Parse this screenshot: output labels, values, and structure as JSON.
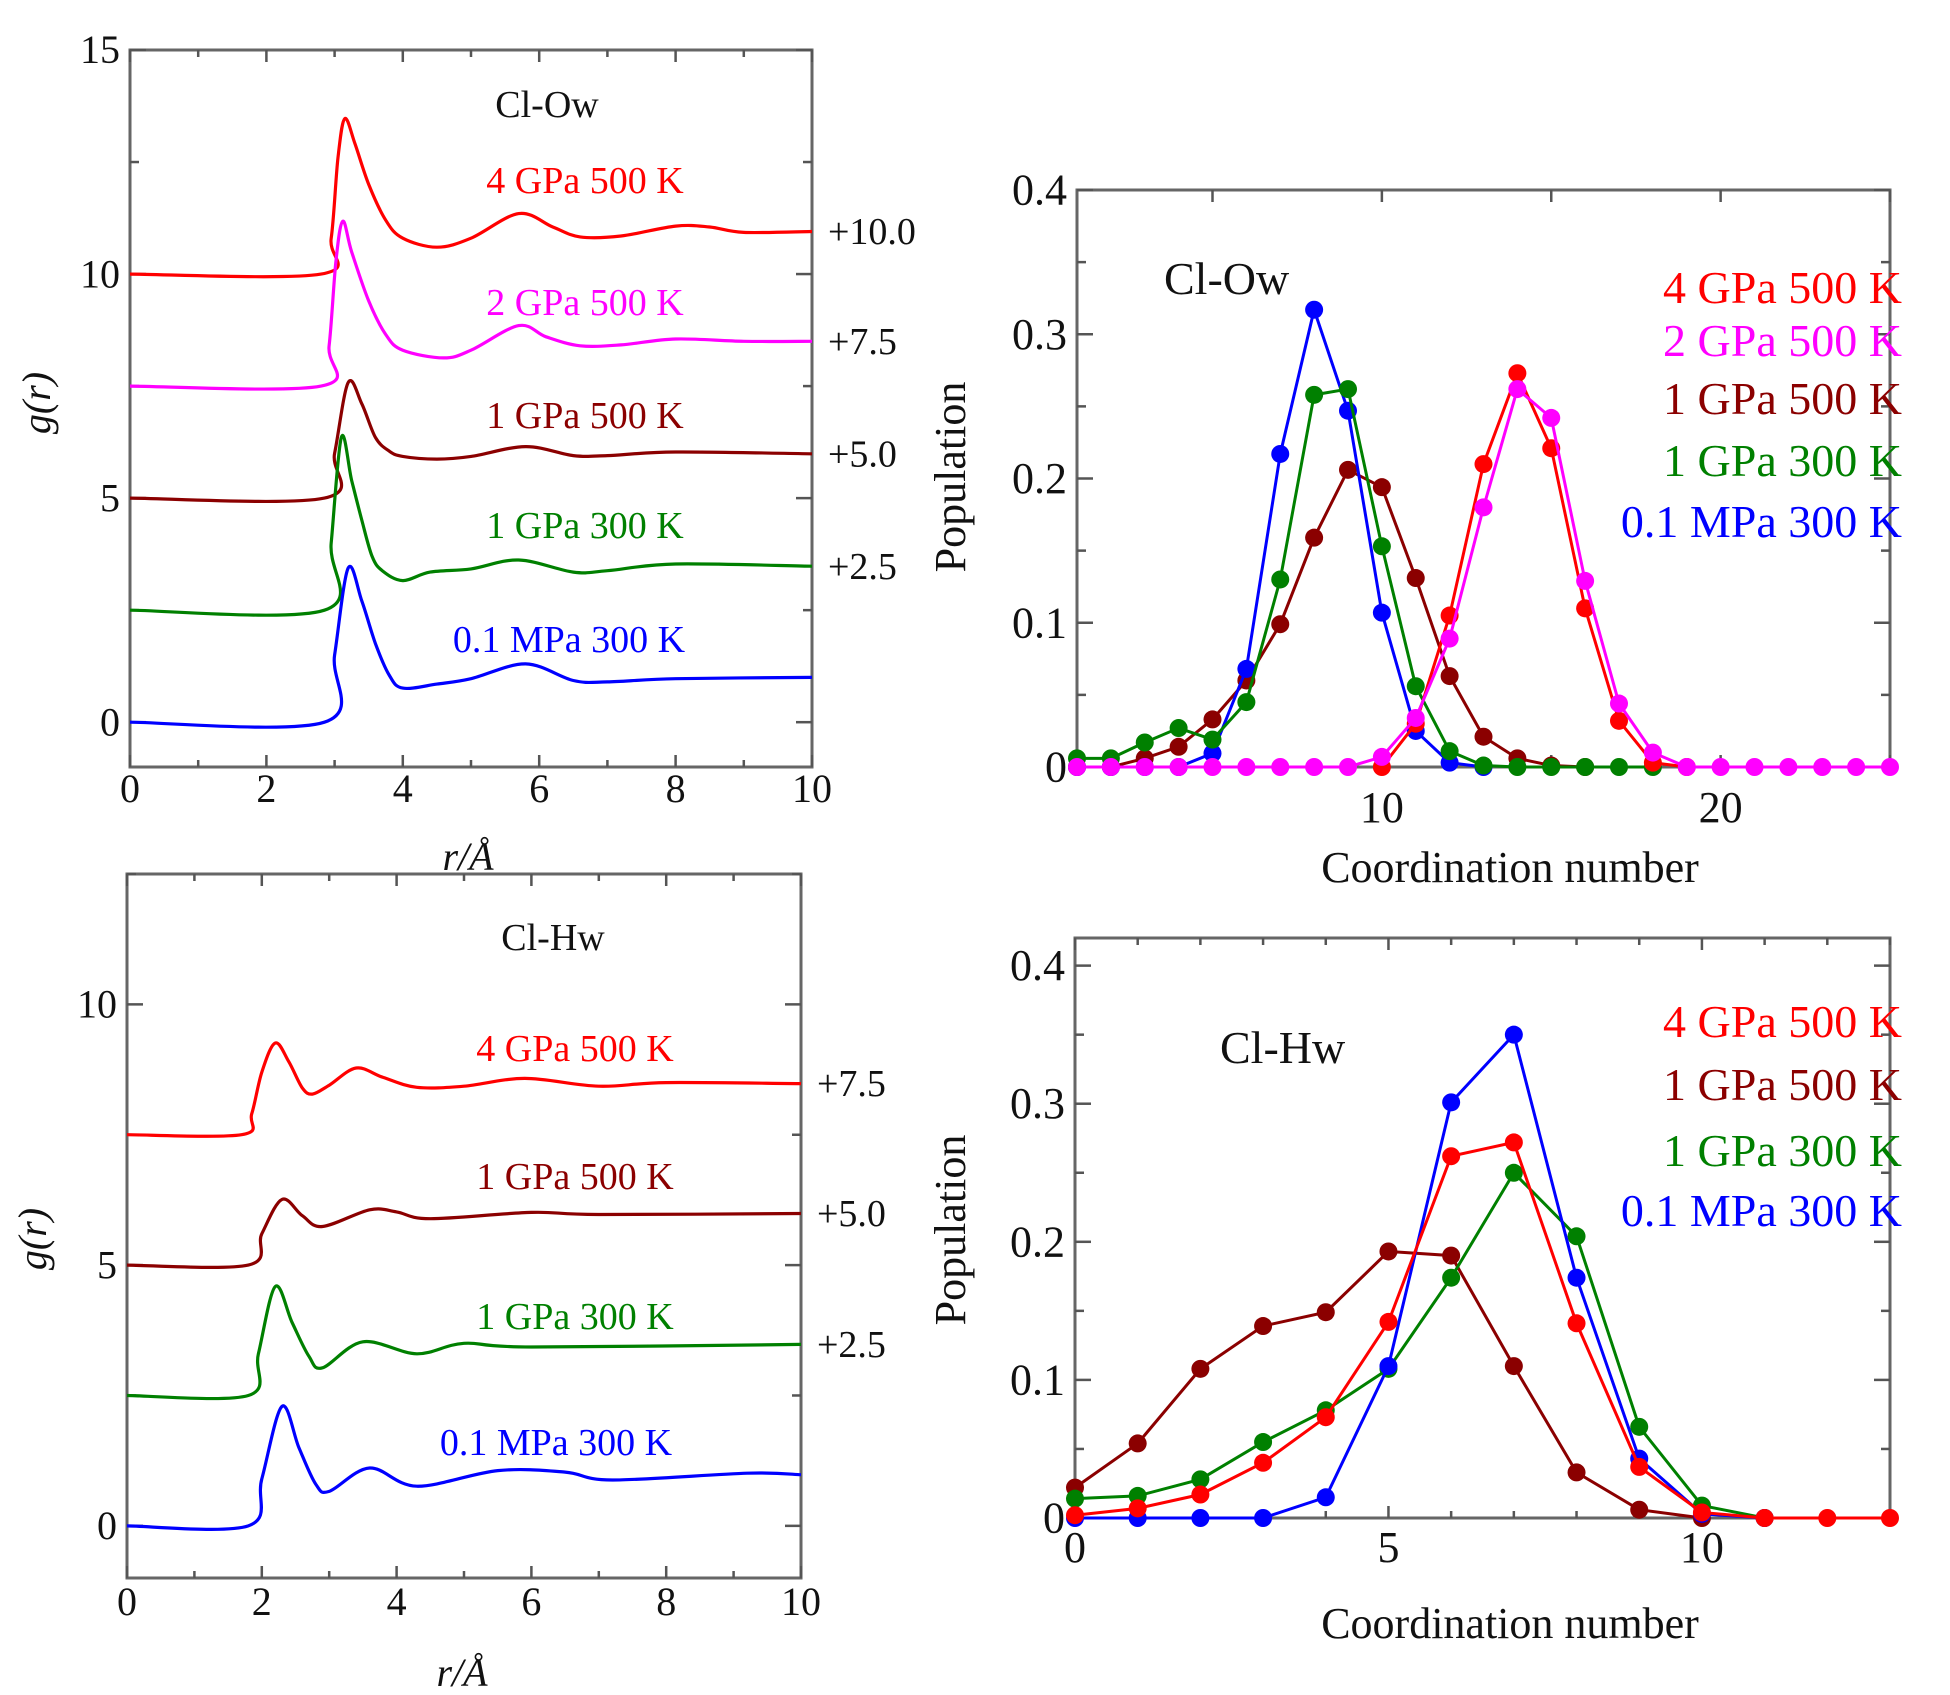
{
  "chart_data": [
    {
      "type": "line",
      "title": "Cl-Ow",
      "xlabel": "r/Å",
      "ylabel": "g(r)",
      "xlim": [
        0,
        10
      ],
      "ylim": [
        -1,
        15
      ],
      "xtick_labels": [
        0,
        2,
        4,
        6,
        8,
        10
      ],
      "ytick_labels": [
        0,
        5,
        10,
        15
      ],
      "grid": false,
      "series": [
        {
          "name": "4 GPa 500 K",
          "color": "#ff0000",
          "offset": 10,
          "offset_label": "+10.0",
          "points": [
            [
              0,
              0
            ],
            [
              2.8,
              0
            ],
            [
              2.95,
              0.8
            ],
            [
              3.05,
              2.6
            ],
            [
              3.15,
              3.47
            ],
            [
              3.3,
              2.9
            ],
            [
              3.5,
              2.0
            ],
            [
              3.75,
              1.2
            ],
            [
              4.0,
              0.8
            ],
            [
              4.5,
              0.6
            ],
            [
              5.0,
              0.8
            ],
            [
              5.7,
              1.35
            ],
            [
              6.2,
              1.05
            ],
            [
              6.6,
              0.83
            ],
            [
              7.2,
              0.85
            ],
            [
              8.0,
              1.07
            ],
            [
              8.5,
              1.05
            ],
            [
              9.0,
              0.93
            ],
            [
              10,
              0.95
            ]
          ]
        },
        {
          "name": "2 GPa 500 K",
          "color": "#ff00ff",
          "offset": 7.5,
          "offset_label": "+7.5",
          "points": [
            [
              0,
              0
            ],
            [
              2.8,
              0
            ],
            [
              2.92,
              0.9
            ],
            [
              3.02,
              2.8
            ],
            [
              3.12,
              3.68
            ],
            [
              3.25,
              3.0
            ],
            [
              3.5,
              1.9
            ],
            [
              3.75,
              1.15
            ],
            [
              4.0,
              0.8
            ],
            [
              4.6,
              0.63
            ],
            [
              5.0,
              0.8
            ],
            [
              5.7,
              1.35
            ],
            [
              6.1,
              1.1
            ],
            [
              6.6,
              0.9
            ],
            [
              7.2,
              0.92
            ],
            [
              8.0,
              1.05
            ],
            [
              9.0,
              1.0
            ],
            [
              10,
              1.0
            ]
          ]
        },
        {
          "name": "1 GPa 500 K",
          "color": "#8b0000",
          "offset": 5,
          "offset_label": "+5.0",
          "points": [
            [
              0,
              0
            ],
            [
              2.85,
              0
            ],
            [
              3.0,
              1.0
            ],
            [
              3.2,
              2.58
            ],
            [
              3.4,
              2.1
            ],
            [
              3.6,
              1.35
            ],
            [
              3.8,
              1.05
            ],
            [
              4.0,
              0.93
            ],
            [
              4.5,
              0.87
            ],
            [
              5.0,
              0.93
            ],
            [
              5.8,
              1.15
            ],
            [
              6.5,
              0.95
            ],
            [
              7.0,
              0.95
            ],
            [
              8.0,
              1.03
            ],
            [
              10,
              0.99
            ]
          ]
        },
        {
          "name": "1 GPa 300 K",
          "color": "#008000",
          "offset": 2.5,
          "offset_label": "+2.5",
          "points": [
            [
              0,
              0
            ],
            [
              2.85,
              0
            ],
            [
              2.95,
              1.5
            ],
            [
              3.1,
              3.86
            ],
            [
              3.25,
              2.9
            ],
            [
              3.4,
              2.0
            ],
            [
              3.55,
              1.2
            ],
            [
              3.7,
              0.88
            ],
            [
              4.0,
              0.66
            ],
            [
              4.4,
              0.85
            ],
            [
              5.0,
              0.92
            ],
            [
              5.7,
              1.12
            ],
            [
              6.5,
              0.85
            ],
            [
              7.0,
              0.88
            ],
            [
              8.0,
              1.03
            ],
            [
              10,
              0.98
            ]
          ]
        },
        {
          "name": "0.1 MPa 300 K",
          "color": "#0000ff",
          "offset": 0,
          "points": [
            [
              0,
              0
            ],
            [
              2.85,
              0
            ],
            [
              3.0,
              1.5
            ],
            [
              3.2,
              3.44
            ],
            [
              3.4,
              2.7
            ],
            [
              3.6,
              1.75
            ],
            [
              3.8,
              1.05
            ],
            [
              4.0,
              0.76
            ],
            [
              4.5,
              0.85
            ],
            [
              5.0,
              0.97
            ],
            [
              5.8,
              1.3
            ],
            [
              6.5,
              0.93
            ],
            [
              7.0,
              0.9
            ],
            [
              8.0,
              0.97
            ],
            [
              10,
              1.0
            ]
          ]
        }
      ]
    },
    {
      "type": "line",
      "title": "Cl-Ow",
      "xlabel": "Coordination number",
      "ylabel": "Population",
      "xlim": [
        1,
        25
      ],
      "ylim": [
        0,
        0.4
      ],
      "xtick_labels": [
        10,
        20
      ],
      "ytick_labels": [
        0,
        0.1,
        0.2,
        0.3,
        0.4
      ],
      "grid": false,
      "legend": "top-right",
      "series": [
        {
          "name": "4 GPa 500 K",
          "color": "#ff0000",
          "x_start": 10,
          "values": [
            0,
            0.03,
            0.105,
            0.21,
            0.273,
            0.221,
            0.11,
            0.032,
            0.003,
            0
          ]
        },
        {
          "name": "2 GPa 500 K",
          "color": "#ff00ff",
          "x_start": 1,
          "values": [
            0,
            0,
            0,
            0,
            0,
            0,
            0,
            0,
            0,
            0.007,
            0.034,
            0.089,
            0.18,
            0.262,
            0.242,
            0.129,
            0.044,
            0.01,
            0,
            0,
            0,
            0,
            0,
            0,
            0
          ]
        },
        {
          "name": "1 GPa 500 K",
          "color": "#8b0000",
          "x_start": 1,
          "values": [
            0,
            0,
            0.006,
            0.014,
            0.033,
            0.06,
            0.099,
            0.159,
            0.206,
            0.194,
            0.131,
            0.063,
            0.021,
            0.006,
            0.001,
            0
          ]
        },
        {
          "name": "1 GPa 300 K",
          "color": "#008000",
          "x_start": 1,
          "values": [
            0.006,
            0.006,
            0.017,
            0.027,
            0.019,
            0.045,
            0.13,
            0.258,
            0.262,
            0.153,
            0.056,
            0.011,
            0.001,
            0,
            0,
            0,
            0,
            0
          ]
        },
        {
          "name": "0.1 MPa 300 K",
          "color": "#0000ff",
          "x_start": 1,
          "values": [
            0,
            0,
            0,
            0,
            0.0095,
            0.068,
            0.217,
            0.317,
            0.247,
            0.107,
            0.025,
            0.003,
            0
          ]
        }
      ]
    },
    {
      "type": "line",
      "title": "Cl-Hw",
      "xlabel": "r/Å",
      "ylabel": "g(r)",
      "xlim": [
        0,
        10
      ],
      "ylim": [
        -1,
        12.5
      ],
      "xtick_labels": [
        0,
        2,
        4,
        6,
        8,
        10
      ],
      "ytick_labels": [
        0,
        5,
        10
      ],
      "grid": false,
      "series": [
        {
          "name": "4 GPa 500 K",
          "color": "#ff0000",
          "offset": 7.5,
          "offset_label": "+7.5",
          "points": [
            [
              0,
              0
            ],
            [
              1.7,
              0
            ],
            [
              1.85,
              0.4
            ],
            [
              2.0,
              1.2
            ],
            [
              2.2,
              1.76
            ],
            [
              2.4,
              1.4
            ],
            [
              2.6,
              0.9
            ],
            [
              2.75,
              0.78
            ],
            [
              3.0,
              0.95
            ],
            [
              3.4,
              1.28
            ],
            [
              3.8,
              1.1
            ],
            [
              4.3,
              0.91
            ],
            [
              5.0,
              0.93
            ],
            [
              5.9,
              1.08
            ],
            [
              7.0,
              0.93
            ],
            [
              8.0,
              1.0
            ],
            [
              10,
              0.98
            ]
          ]
        },
        {
          "name": "1 GPa 500 K",
          "color": "#8b0000",
          "offset": 5,
          "offset_label": "+5.0",
          "points": [
            [
              0,
              0
            ],
            [
              1.8,
              0
            ],
            [
              2.0,
              0.6
            ],
            [
              2.3,
              1.26
            ],
            [
              2.6,
              0.95
            ],
            [
              2.9,
              0.74
            ],
            [
              3.6,
              1.06
            ],
            [
              4.0,
              1.02
            ],
            [
              4.5,
              0.89
            ],
            [
              6.0,
              1.01
            ],
            [
              7.0,
              0.97
            ],
            [
              10,
              0.99
            ]
          ]
        },
        {
          "name": "1 GPa 300 K",
          "color": "#008000",
          "offset": 2.5,
          "offset_label": "+2.5",
          "points": [
            [
              0,
              0
            ],
            [
              1.8,
              0
            ],
            [
              1.95,
              0.8
            ],
            [
              2.2,
              2.09
            ],
            [
              2.45,
              1.4
            ],
            [
              2.7,
              0.75
            ],
            [
              2.9,
              0.53
            ],
            [
              3.5,
              1.03
            ],
            [
              4.3,
              0.8
            ],
            [
              5.0,
              1.0
            ],
            [
              6,
              0.93
            ],
            [
              10,
              0.98
            ]
          ]
        },
        {
          "name": "0.1 MPa 300 K",
          "color": "#0000ff",
          "offset": 0,
          "points": [
            [
              0,
              0
            ],
            [
              1.8,
              0
            ],
            [
              2.0,
              0.9
            ],
            [
              2.3,
              2.29
            ],
            [
              2.55,
              1.5
            ],
            [
              2.8,
              0.8
            ],
            [
              3.0,
              0.66
            ],
            [
              3.6,
              1.11
            ],
            [
              4.3,
              0.76
            ],
            [
              5.5,
              1.06
            ],
            [
              6.5,
              1.03
            ],
            [
              7.2,
              0.88
            ],
            [
              9.2,
              1.01
            ],
            [
              10,
              0.98
            ]
          ]
        }
      ]
    },
    {
      "type": "line",
      "title": "Cl-Hw",
      "xlabel": "Coordination number",
      "ylabel": "Population",
      "xlim": [
        0,
        13
      ],
      "ylim": [
        0,
        0.42
      ],
      "xtick_labels": [
        0,
        5,
        10
      ],
      "ytick_labels": [
        0,
        0.1,
        0.2,
        0.3,
        0.4
      ],
      "grid": false,
      "legend": "top-right",
      "series": [
        {
          "name": "4 GPa 500 K",
          "color": "#ff0000",
          "x_start": 0,
          "values": [
            0.002,
            0.007,
            0.017,
            0.04,
            0.073,
            0.142,
            0.262,
            0.272,
            0.141,
            0.037,
            0.004,
            0,
            0,
            0
          ]
        },
        {
          "name": "1 GPa 500 K",
          "color": "#8b0000",
          "x_start": 0,
          "values": [
            0.022,
            0.054,
            0.108,
            0.139,
            0.149,
            0.193,
            0.19,
            0.11,
            0.033,
            0.006,
            0
          ]
        },
        {
          "name": "1 GPa 300 K",
          "color": "#008000",
          "x_start": 0,
          "values": [
            0.014,
            0.016,
            0.028,
            0.055,
            0.078,
            0.108,
            0.174,
            0.25,
            0.204,
            0.066,
            0.009,
            0
          ]
        },
        {
          "name": "0.1 MPa 300 K",
          "color": "#0000ff",
          "x_start": 0,
          "values": [
            0,
            0,
            0,
            0,
            0.015,
            0.11,
            0.301,
            0.35,
            0.174,
            0.043,
            0.003,
            0
          ]
        }
      ]
    }
  ]
}
